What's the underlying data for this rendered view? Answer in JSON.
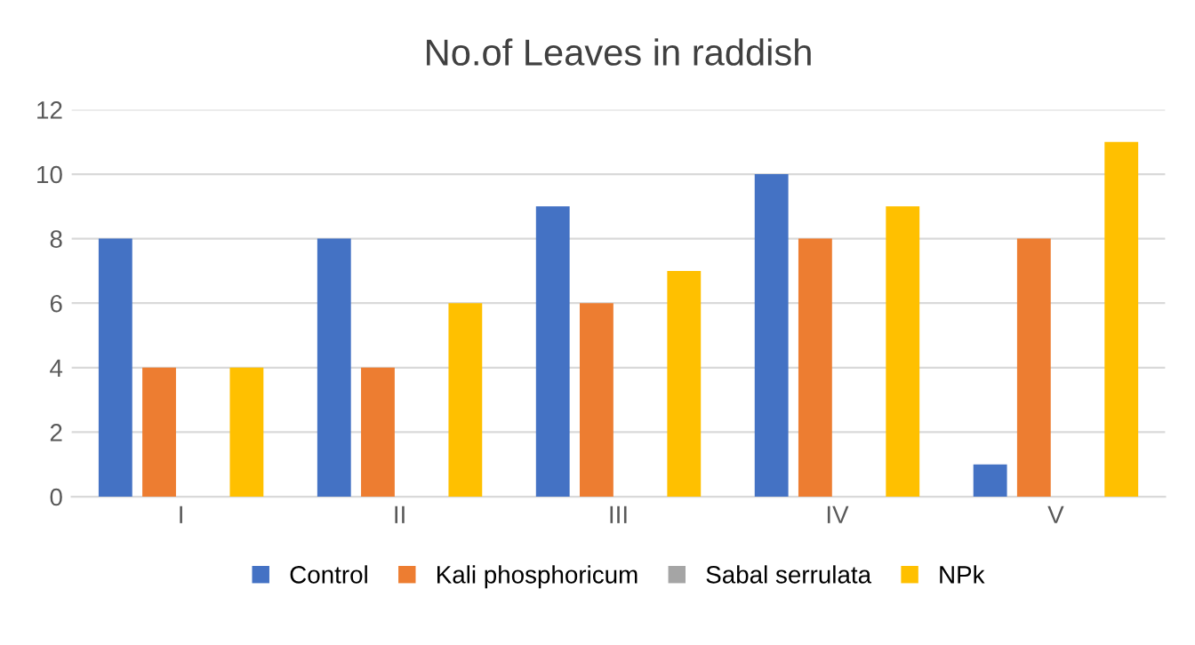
{
  "chart_data": {
    "type": "bar",
    "title": "No.of Leaves in raddish",
    "categories": [
      "I",
      "II",
      "III",
      "IV",
      "V"
    ],
    "series": [
      {
        "name": "Control",
        "color": "#4472c4",
        "values": [
          8,
          8,
          9,
          10,
          1
        ]
      },
      {
        "name": "Kali phosphoricum",
        "color": "#ed7d31",
        "values": [
          4,
          4,
          6,
          8,
          8
        ]
      },
      {
        "name": "Sabal serrulata",
        "color": "#a5a5a5",
        "values": [
          0,
          0,
          0,
          0,
          0
        ]
      },
      {
        "name": "NPk",
        "color": "#ffc000",
        "values": [
          4,
          6,
          7,
          9,
          11
        ]
      }
    ],
    "ylim": [
      0,
      12
    ],
    "yticks": [
      0,
      2,
      4,
      6,
      8,
      10,
      12
    ],
    "grid": "y",
    "legend": "bottom"
  }
}
